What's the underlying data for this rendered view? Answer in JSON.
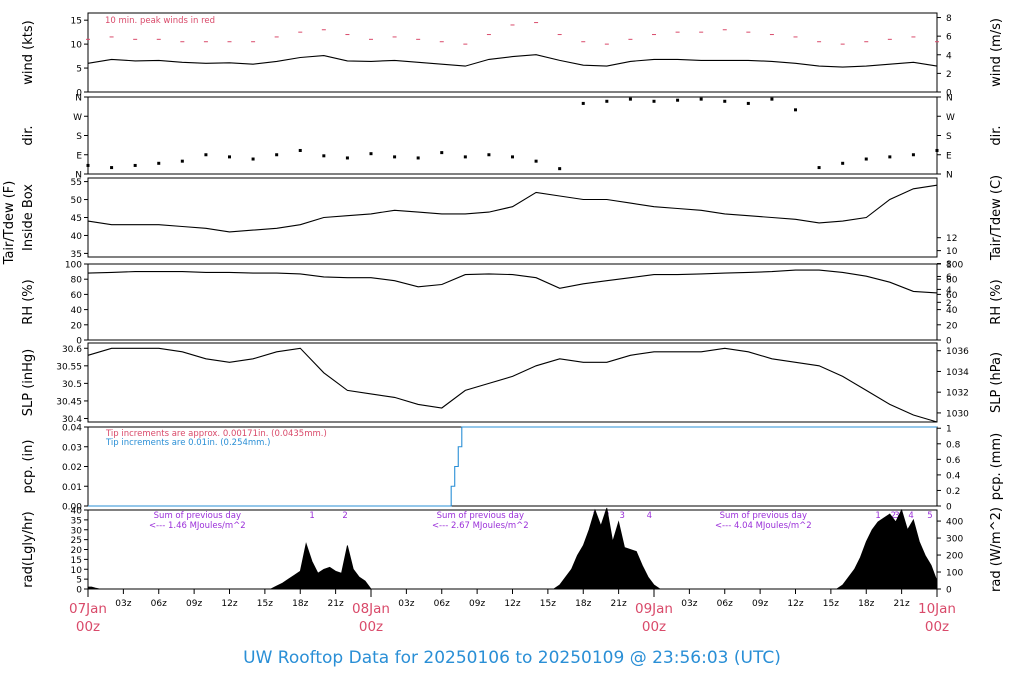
{
  "footer": {
    "title": "UW Rooftop Data for 20250106  to  20250109 @ 23:56:03  (UTC)"
  },
  "chart_data": {
    "type": "line",
    "time_axis": {
      "range_hours": [
        0,
        72
      ],
      "tick_every_hours": 3,
      "minor_labels": [
        "03z",
        "06z",
        "09z",
        "12z",
        "15z",
        "18z",
        "21z",
        "03z",
        "06z",
        "09z",
        "12z",
        "15z",
        "18z",
        "21z",
        "03z",
        "06z",
        "09z",
        "12z",
        "15z",
        "18z",
        "21z"
      ],
      "day_labels": [
        {
          "hour": 0,
          "day": "07Jan",
          "time": "00z"
        },
        {
          "hour": 24,
          "day": "08Jan",
          "time": "00z"
        },
        {
          "hour": 48,
          "day": "09Jan",
          "time": "00z"
        },
        {
          "hour": 72,
          "day": "10Jan",
          "time": "00z"
        }
      ],
      "accent_color": "#d94a6a"
    },
    "panels": [
      {
        "id": "wind",
        "ylabel_left": "wind (kts)",
        "ylabel_right": "wind (m/s)",
        "ylim_left": [
          0,
          16.5
        ],
        "left_ticks": [
          0,
          5,
          10,
          15
        ],
        "right_ticks": [
          0,
          2,
          4,
          6,
          8
        ],
        "right_scale": 0.5144,
        "annotation": "10 min. peak winds in red",
        "annotation_color": "#d94a6a",
        "series": [
          {
            "role": "mean",
            "color": "#000000",
            "x": [
              0,
              2,
              4,
              6,
              8,
              10,
              12,
              14,
              16,
              18,
              20,
              22,
              24,
              26,
              28,
              30,
              32,
              34,
              36,
              38,
              40,
              42,
              44,
              46,
              48,
              50,
              52,
              54,
              56,
              58,
              60,
              62,
              64,
              66,
              68,
              70,
              72
            ],
            "y": [
              6,
              6.8,
              6.5,
              6.6,
              6.2,
              6,
              6.1,
              5.8,
              6.4,
              7.2,
              7.6,
              6.5,
              6.4,
              6.6,
              6.2,
              5.8,
              5.4,
              6.8,
              7.4,
              7.8,
              6.6,
              5.6,
              5.4,
              6.4,
              6.8,
              6.8,
              6.6,
              6.6,
              6.6,
              6.4,
              6,
              5.4,
              5.2,
              5.4,
              5.8,
              6.2,
              5.4
            ]
          },
          {
            "role": "peak",
            "color": "#d94a6a",
            "x": [
              0,
              2,
              4,
              6,
              8,
              10,
              12,
              14,
              16,
              18,
              20,
              22,
              24,
              26,
              28,
              30,
              32,
              34,
              36,
              38,
              40,
              42,
              44,
              46,
              48,
              50,
              52,
              54,
              56,
              58,
              60,
              62,
              64,
              66,
              68,
              70,
              72
            ],
            "y": [
              11,
              11.5,
              11,
              11,
              10.5,
              10.5,
              10.5,
              10.5,
              11.5,
              12.5,
              13,
              12,
              11,
              11.5,
              11,
              10.5,
              10,
              12,
              14,
              14.5,
              12,
              10.5,
              10,
              11,
              12,
              12.5,
              12.5,
              13,
              12.5,
              12,
              11.5,
              10.5,
              10,
              10.5,
              11,
              11.5,
              10.5
            ]
          }
        ]
      },
      {
        "id": "dir",
        "ylabel_left": "dir.",
        "ylabel_right": "dir.",
        "ylim_left": [
          0,
          360
        ],
        "left_ticks": [
          0,
          90,
          180,
          270,
          360
        ],
        "tick_labels": [
          "N",
          "E",
          "S",
          "W",
          "N"
        ],
        "series": [
          {
            "role": "direction",
            "color": "#000000",
            "x": [
              0,
              2,
              4,
              6,
              8,
              10,
              12,
              14,
              16,
              18,
              20,
              22,
              24,
              26,
              28,
              30,
              32,
              34,
              36,
              38,
              40,
              42,
              44,
              46,
              48,
              50,
              52,
              54,
              56,
              58,
              60,
              62,
              64,
              66,
              68,
              70,
              72
            ],
            "y": [
              40,
              30,
              40,
              50,
              60,
              90,
              80,
              70,
              90,
              110,
              85,
              75,
              95,
              80,
              75,
              100,
              80,
              90,
              80,
              60,
              25,
              330,
              340,
              350,
              340,
              345,
              350,
              340,
              330,
              350,
              300,
              30,
              50,
              70,
              80,
              90,
              110
            ]
          }
        ]
      },
      {
        "id": "temp",
        "ylabel_left": "Tair/Tdew (F)",
        "ylabel_left2": "Inside Box",
        "ylabel_right": "Tair/Tdew (C)",
        "ylim_left": [
          34,
          56
        ],
        "left_ticks": [
          35,
          40,
          45,
          50,
          55
        ],
        "right_ticks": [
          2,
          4,
          6,
          8,
          10,
          12
        ],
        "right_scale": 0.5556,
        "right_offset": -17.778,
        "series": [
          {
            "role": "tair",
            "color": "#000000",
            "x": [
              0,
              2,
              4,
              6,
              8,
              10,
              12,
              14,
              16,
              18,
              20,
              22,
              24,
              26,
              28,
              30,
              32,
              34,
              36,
              38,
              40,
              42,
              44,
              46,
              48,
              50,
              52,
              54,
              56,
              58,
              60,
              62,
              64,
              66,
              68,
              70,
              72
            ],
            "y": [
              44,
              43,
              43,
              43,
              42.5,
              42,
              41,
              41.5,
              42,
              43,
              45,
              45.5,
              46,
              47,
              46.5,
              46,
              46,
              46.5,
              48,
              52,
              51,
              50,
              50,
              49,
              48,
              47.5,
              47,
              46,
              45.5,
              45,
              44.5,
              43.5,
              44,
              45,
              50,
              53,
              54
            ]
          }
        ]
      },
      {
        "id": "rh",
        "ylabel_left": "RH (%)",
        "ylabel_right": "RH (%)",
        "ylim_left": [
          0,
          100
        ],
        "left_ticks": [
          0,
          20,
          40,
          60,
          80,
          100
        ],
        "right_ticks": [
          0,
          20,
          40,
          60,
          80,
          100
        ],
        "series": [
          {
            "role": "rh",
            "color": "#000000",
            "x": [
              0,
              2,
              4,
              6,
              8,
              10,
              12,
              14,
              16,
              18,
              20,
              22,
              24,
              26,
              28,
              30,
              32,
              34,
              36,
              38,
              40,
              42,
              44,
              46,
              48,
              50,
              52,
              54,
              56,
              58,
              60,
              62,
              64,
              66,
              68,
              70,
              72
            ],
            "y": [
              88,
              89,
              90,
              90,
              90,
              89,
              89,
              88,
              88,
              87,
              83,
              82,
              82,
              78,
              70,
              73,
              86,
              87,
              86,
              82,
              68,
              74,
              78,
              82,
              86,
              86,
              87,
              88,
              89,
              90,
              92,
              92,
              89,
              84,
              76,
              64,
              62
            ]
          }
        ]
      },
      {
        "id": "slp",
        "ylabel_left": "SLP (inHg)",
        "ylabel_right": "SLP (hPa)",
        "ylim_left": [
          30.39,
          30.615
        ],
        "left_ticks": [
          30.4,
          30.45,
          30.5,
          30.55,
          30.6
        ],
        "right_ticks": [
          1030,
          1032,
          1034,
          1036
        ],
        "right_scale": 33.8639,
        "series": [
          {
            "role": "slp",
            "color": "#000000",
            "x": [
              0,
              2,
              4,
              6,
              8,
              10,
              12,
              14,
              16,
              18,
              20,
              22,
              24,
              26,
              28,
              30,
              32,
              34,
              36,
              38,
              40,
              42,
              44,
              46,
              48,
              50,
              52,
              54,
              56,
              58,
              60,
              62,
              64,
              66,
              68,
              70,
              72
            ],
            "y": [
              30.58,
              30.6,
              30.6,
              30.6,
              30.59,
              30.57,
              30.56,
              30.57,
              30.59,
              30.6,
              30.53,
              30.48,
              30.47,
              30.46,
              30.44,
              30.43,
              30.48,
              30.5,
              30.52,
              30.55,
              30.57,
              30.56,
              30.56,
              30.58,
              30.59,
              30.59,
              30.59,
              30.6,
              30.59,
              30.57,
              30.56,
              30.55,
              30.52,
              30.48,
              30.44,
              30.41,
              30.39
            ]
          }
        ]
      },
      {
        "id": "pcp",
        "ylabel_left": "pcp. (in)",
        "ylabel_right": "pcp. (mm)",
        "ylim_left": [
          0,
          0.04
        ],
        "left_ticks": [
          0,
          0.01,
          0.02,
          0.03,
          0.04
        ],
        "left_tick_labels": [
          "0.00",
          "0.01",
          "0.02",
          "0.03",
          "0.04"
        ],
        "right_ticks": [
          0,
          0.2,
          0.4,
          0.6,
          0.8,
          1
        ],
        "right_tick_labels": [
          "0",
          "0.2",
          "0.4",
          "0.6",
          "0.8",
          "1"
        ],
        "right_scale": 25.4,
        "annotations": [
          {
            "text": "Tip increments are approx. 0.00171in. (0.0435mm.)",
            "color": "#d94a6a"
          },
          {
            "text": "Tip increments are 0.01in. (0.254mm.)",
            "color": "#2a8fd6"
          }
        ],
        "series": [
          {
            "role": "pcp",
            "color": "#2a8fd6",
            "x": [
              0,
              30.5,
              30.8,
              31.1,
              31.4,
              31.7,
              72
            ],
            "y": [
              0,
              0,
              0.01,
              0.02,
              0.03,
              0.04,
              0.04
            ]
          }
        ]
      },
      {
        "id": "rad",
        "ylabel_left": "rad(Lgly/hr)",
        "ylabel_right": "rad (W/m^2)",
        "ylim_left": [
          0,
          40
        ],
        "left_ticks": [
          0,
          5,
          10,
          15,
          20,
          25,
          30,
          35,
          40
        ],
        "right_ticks": [
          0,
          100,
          200,
          300,
          400
        ],
        "right_scale": 11.63,
        "type": "area",
        "annotations": [
          {
            "hour": 8,
            "line1": "Sum of previous day",
            "line2": "<--- 1.46 MJoules/m^2"
          },
          {
            "hour": 32,
            "line1": "Sum of previous day",
            "line2": "<--- 2.67 MJoules/m^2"
          },
          {
            "hour": 56,
            "line1": "Sum of previous day",
            "line2": "<--- 4.04 MJoules/m^2"
          }
        ],
        "annotation_color": "#9b30d9",
        "markers": [
          {
            "hour": 19.0,
            "label": "1"
          },
          {
            "hour": 21.8,
            "label": "2"
          },
          {
            "hour": 43.0,
            "label": "1"
          },
          {
            "hour": 44.0,
            "label": "2"
          },
          {
            "hour": 45.3,
            "label": "3"
          },
          {
            "hour": 47.6,
            "label": "4"
          },
          {
            "hour": 67.0,
            "label": "1"
          },
          {
            "hour": 68.3,
            "label": "2"
          },
          {
            "hour": 68.6,
            "label": "3"
          },
          {
            "hour": 69.8,
            "label": "4"
          },
          {
            "hour": 71.4,
            "label": "5"
          }
        ],
        "series": [
          {
            "role": "rad",
            "color": "#000000",
            "x": [
              0,
              0.3,
              0.6,
              1,
              15.5,
              16,
              16.5,
              17,
              17.5,
              18,
              18.5,
              19,
              19.5,
              20,
              20.5,
              21,
              21.5,
              22,
              22.5,
              23,
              23.5,
              24,
              39.5,
              40,
              40.5,
              41,
              41.5,
              42,
              42.5,
              43,
              43.5,
              44,
              44.5,
              45,
              45.5,
              46,
              46.5,
              47,
              47.5,
              48,
              48.5,
              63.5,
              64,
              64.5,
              65,
              65.5,
              66,
              66.5,
              67,
              67.5,
              68,
              68.5,
              69,
              69.5,
              70,
              70.5,
              71,
              71.5,
              72
            ],
            "y": [
              1,
              1,
              0.5,
              0,
              0,
              1.5,
              3,
              5,
              7,
              9,
              23,
              14,
              8,
              10,
              11,
              9,
              8,
              22,
              10,
              6,
              4,
              0,
              0,
              2,
              6,
              10,
              17,
              22,
              30,
              40,
              32,
              41,
              24,
              34,
              21,
              20,
              19,
              12,
              6,
              2,
              0,
              0,
              2,
              6,
              10,
              16,
              24,
              30,
              34,
              36,
              38,
              34,
              40,
              30,
              35,
              24,
              17,
              12,
              4
            ]
          }
        ]
      }
    ]
  }
}
